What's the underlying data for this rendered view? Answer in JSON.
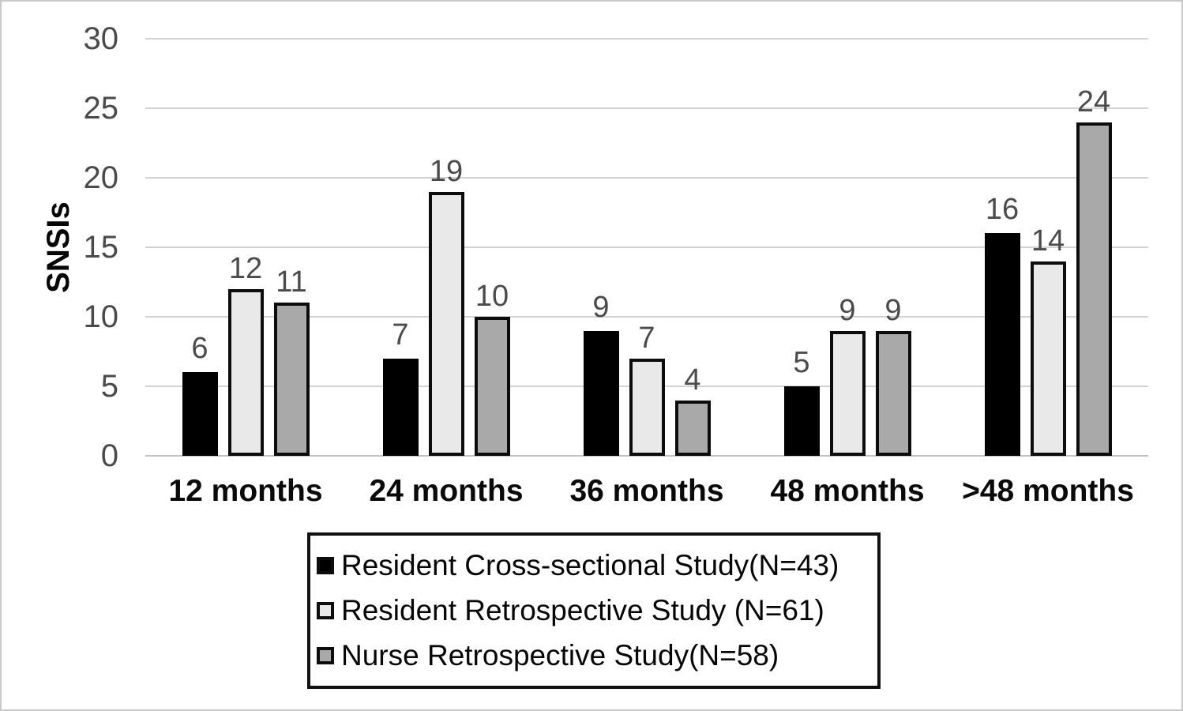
{
  "chart_data": {
    "type": "bar",
    "title": "",
    "xlabel": "",
    "ylabel": "SNSIs",
    "ylim": [
      0,
      30
    ],
    "yticks": [
      0,
      5,
      10,
      15,
      20,
      25,
      30
    ],
    "grid": true,
    "legend_position": "bottom-boxed",
    "categories": [
      "12 months",
      "24 months",
      "36 months",
      "48 months",
      ">48 months"
    ],
    "series": [
      {
        "name": "Resident Cross-sectional Study(N=43)",
        "color": "#000000",
        "bordered": false,
        "values": [
          6,
          7,
          9,
          5,
          16
        ]
      },
      {
        "name": "Resident Retrospective Study (N=61)",
        "color": "#e9e9e9",
        "bordered": true,
        "values": [
          12,
          19,
          7,
          9,
          14
        ]
      },
      {
        "name": "Nurse Retrospective Study(N=58)",
        "color": "#a9a9a9",
        "bordered": true,
        "values": [
          11,
          10,
          4,
          9,
          24
        ]
      }
    ],
    "colors": {
      "gridline": "#d2d2d2",
      "axis_text": "#4a4a4a",
      "value_label_text": "#4b4b4b",
      "category_text": "#0a0a0a",
      "bar_border": "#0c0c0c",
      "legend_border": "#101010",
      "figure_border": "#c9c9c9"
    }
  }
}
